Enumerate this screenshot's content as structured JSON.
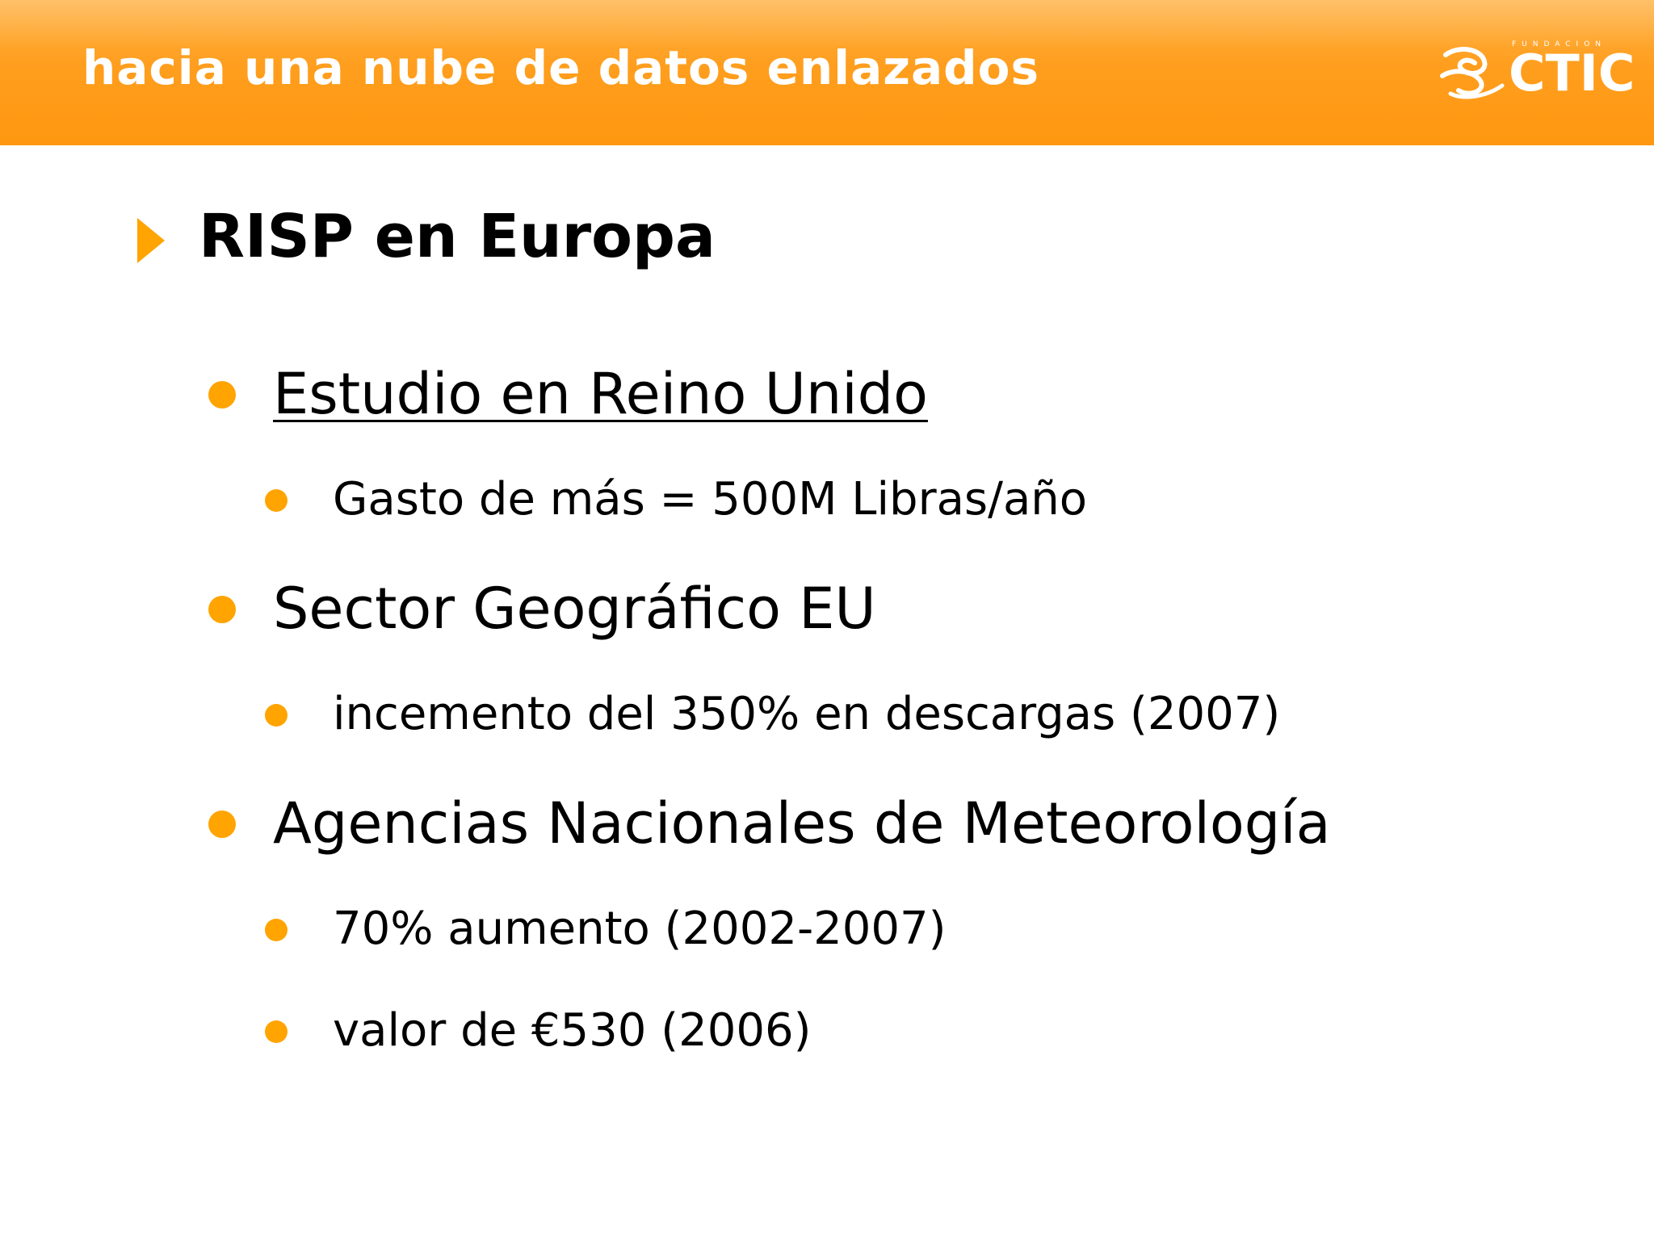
{
  "header": {
    "title": "hacia una nube de datos enlazados",
    "logo": {
      "small_text": "FUNDACION",
      "wordmark": "CTIC",
      "icon": "ctic-swirl-logo-icon"
    },
    "colors": {
      "band": "#ff9a14",
      "band_light": "#ffb347",
      "text": "#ffffff"
    }
  },
  "section": {
    "arrow_icon": "triangle-right-icon",
    "title": "RISP en Europa"
  },
  "bullets": [
    {
      "text": "Estudio en Reino Unido",
      "underlined": true,
      "children": [
        {
          "text": "Gasto de más = 500M Libras/año"
        }
      ]
    },
    {
      "text": "Sector Geográfico EU",
      "underlined": false,
      "children": [
        {
          "text": "incemento del 350% en descargas (2007)"
        }
      ]
    },
    {
      "text": "Agencias Nacionales de Meteorología",
      "underlined": false,
      "children": [
        {
          "text": "70% aumento (2002-2007)"
        },
        {
          "text": "valor de €530 (2006)"
        }
      ]
    }
  ],
  "accent_color": "#ffa400"
}
